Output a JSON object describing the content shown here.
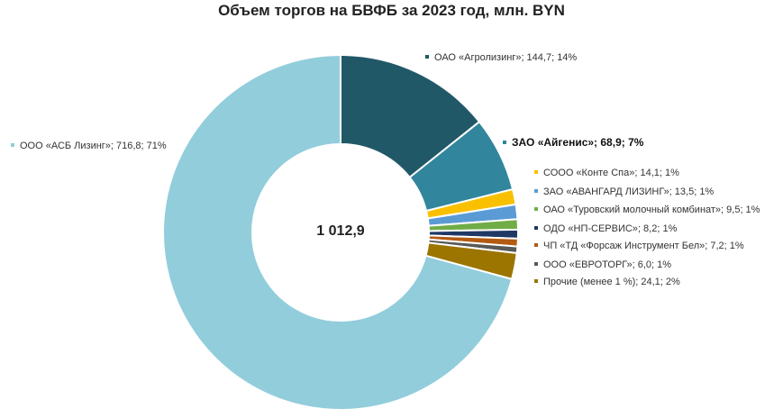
{
  "chart_data": {
    "type": "donut",
    "title": "Объем торгов на БВФБ за 2023 год, млн. BYN",
    "total_label": "1 012,9",
    "slices": [
      {
        "name": "ОАО «Агролизинг»",
        "value": 144.7,
        "percent": 14,
        "label": "ОАО «Агролизинг»;  144,7; 14%",
        "color": "#215868",
        "bold": false
      },
      {
        "name": "ЗАО «Айгенис»",
        "value": 68.9,
        "percent": 7,
        "label": "ЗАО «Айгенис»;  68,9; 7%",
        "color": "#31859C",
        "bold": true
      },
      {
        "name": "СООО «Конте Спа»",
        "value": 14.1,
        "percent": 1,
        "label": "СООО «Конте Спа»;  14,1; 1%",
        "color": "#F9C000",
        "bold": false
      },
      {
        "name": "ЗАО «АВАНГАРД ЛИЗИНГ»",
        "value": 13.5,
        "percent": 1,
        "label": "ЗАО «АВАНГАРД ЛИЗИНГ»;  13,5; 1%",
        "color": "#5B9BD5",
        "bold": false
      },
      {
        "name": "ОАО «Туровский молочный комбинат»",
        "value": 9.5,
        "percent": 1,
        "label": "ОАО «Туровский молочный комбинат»;  9,5; 1%",
        "color": "#70AD47",
        "bold": false
      },
      {
        "name": "ОДО «НП-СЕРВИС»",
        "value": 8.2,
        "percent": 1,
        "label": "ОДО «НП-СЕРВИС»;  8,2; 1%",
        "color": "#1F3864",
        "bold": false
      },
      {
        "name": "ЧП «ТД «Форсаж Инструмент Бел»",
        "value": 7.2,
        "percent": 1,
        "label": "ЧП «ТД «Форсаж Инструмент Бел»;  7,2; 1%",
        "color": "#B35A12",
        "bold": false
      },
      {
        "name": "ООО «ЕВРОТОРГ»",
        "value": 6.0,
        "percent": 1,
        "label": "ООО «ЕВРОТОРГ»;  6,0; 1%",
        "color": "#595959",
        "bold": false
      },
      {
        "name": "Прочие (менее 1 %)",
        "value": 24.1,
        "percent": 2,
        "label": "Прочие (менее 1 %);  24,1; 2%",
        "color": "#9C7400",
        "bold": false
      },
      {
        "name": "ООО «АСБ Лизинг»",
        "value": 716.8,
        "percent": 71,
        "label": "ООО «АСБ Лизинг»;  716,8; 71%",
        "color": "#92CDDC",
        "bold": false
      }
    ]
  }
}
